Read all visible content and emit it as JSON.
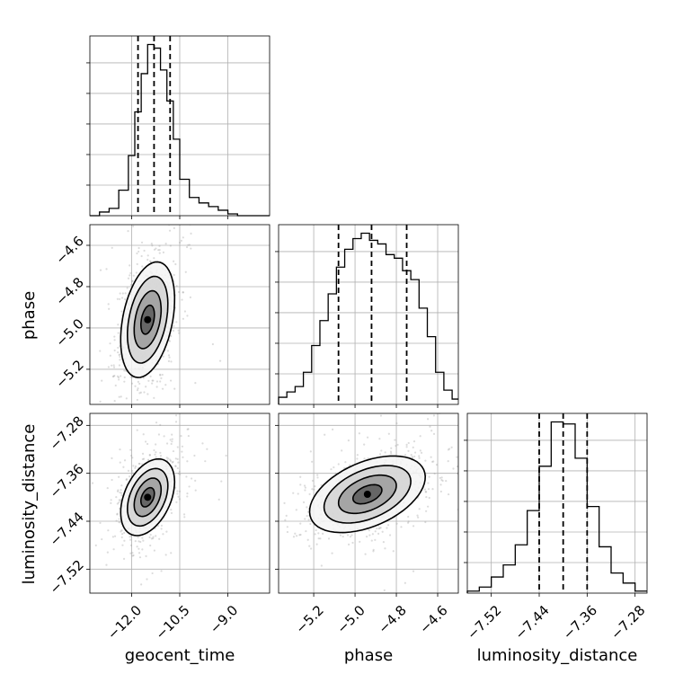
{
  "chart_data": {
    "type": "corner",
    "parameters": [
      "geocent_time",
      "phase",
      "luminosity_distance"
    ],
    "axis_labels": {
      "x": [
        "geocent_time",
        "phase",
        "luminosity_distance"
      ],
      "y": [
        "phase",
        "luminosity_distance"
      ]
    },
    "ranges": {
      "geocent_time": [
        -13.3,
        -7.7
      ],
      "phase": [
        -5.37,
        -4.5
      ],
      "luminosity_distance": [
        -7.56,
        -7.26
      ]
    },
    "ticks": {
      "geocent_time": [
        {
          "value": -12.0,
          "label": "−12.0"
        },
        {
          "value": -10.5,
          "label": "−10.5"
        },
        {
          "value": -9.0,
          "label": "−9.0"
        }
      ],
      "phase": [
        {
          "value": -5.2,
          "label": "−5.2"
        },
        {
          "value": -5.0,
          "label": "−5.0"
        },
        {
          "value": -4.8,
          "label": "−4.8"
        },
        {
          "value": -4.6,
          "label": "−4.6"
        }
      ],
      "luminosity_distance": [
        {
          "value": -7.52,
          "label": "−7.52"
        },
        {
          "value": -7.44,
          "label": "−7.44"
        },
        {
          "value": -7.36,
          "label": "−7.36"
        },
        {
          "value": -7.28,
          "label": "−7.28"
        }
      ]
    },
    "histograms": {
      "geocent_time": {
        "edges": [
          -13.3,
          -13.0,
          -12.7,
          -12.4,
          -12.1,
          -11.9,
          -11.7,
          -11.5,
          -11.3,
          -11.1,
          -10.9,
          -10.7,
          -10.5,
          -10.2,
          -9.9,
          -9.6,
          -9.3,
          -9.0,
          -8.7,
          -7.7
        ],
        "counts": [
          0,
          2,
          4,
          14,
          33,
          57,
          78,
          94,
          92,
          80,
          63,
          42,
          20,
          10,
          7,
          5,
          3,
          1,
          0
        ],
        "quantiles": [
          -11.8,
          -11.3,
          -10.8
        ]
      },
      "phase": {
        "edges": [
          -5.37,
          -5.33,
          -5.29,
          -5.25,
          -5.21,
          -5.17,
          -5.13,
          -5.09,
          -5.05,
          -5.01,
          -4.97,
          -4.93,
          -4.89,
          -4.85,
          -4.81,
          -4.77,
          -4.73,
          -4.69,
          -4.65,
          -4.61,
          -4.57,
          -4.53,
          -4.5
        ],
        "counts": [
          4,
          7,
          10,
          18,
          33,
          47,
          62,
          77,
          87,
          93,
          96,
          92,
          90,
          84,
          82,
          75,
          70,
          54,
          38,
          18,
          8,
          3
        ],
        "quantiles": [
          -5.08,
          -4.92,
          -4.75
        ]
      },
      "luminosity_distance": {
        "edges": [
          -7.56,
          -7.54,
          -7.52,
          -7.5,
          -7.48,
          -7.46,
          -7.44,
          -7.42,
          -7.4,
          -7.38,
          -7.36,
          -7.34,
          -7.32,
          -7.3,
          -7.28,
          -7.26
        ],
        "counts": [
          1,
          3,
          8,
          14,
          24,
          41,
          63,
          85,
          84,
          67,
          43,
          23,
          10,
          5,
          1
        ],
        "quantiles": [
          -7.44,
          -7.4,
          -7.36
        ]
      }
    },
    "joint": [
      {
        "x": "geocent_time",
        "y": "phase",
        "center": [
          -11.5,
          -4.96
        ],
        "sigma": [
          0.42,
          0.14
        ],
        "rho": 0.35,
        "contour_sigmas": [
          0.5,
          1.0,
          1.5,
          2.0
        ]
      },
      {
        "x": "geocent_time",
        "y": "luminosity_distance",
        "center": [
          -11.5,
          -7.4
        ],
        "sigma": [
          0.42,
          0.032
        ],
        "rho": 0.4,
        "contour_sigmas": [
          0.5,
          1.0,
          1.5,
          2.0
        ]
      },
      {
        "x": "phase",
        "y": "luminosity_distance",
        "center": [
          -4.94,
          -7.395
        ],
        "sigma": [
          0.14,
          0.032
        ],
        "rho": 0.45,
        "contour_sigmas": [
          0.5,
          1.0,
          1.5,
          2.0
        ]
      }
    ],
    "grid": true
  }
}
